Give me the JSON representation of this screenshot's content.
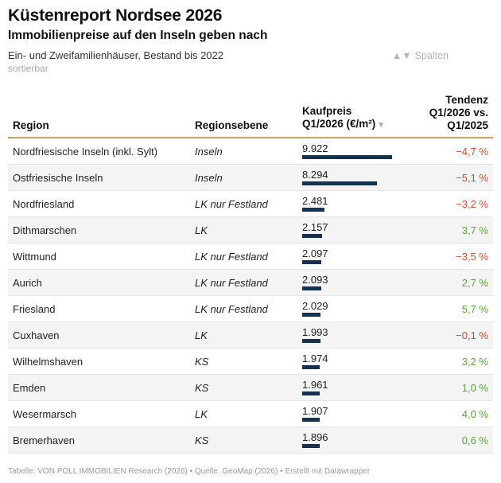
{
  "header": {
    "title": "Küstenreport Nordsee 2026",
    "subtitle": "Immobilienpreise auf den Inseln geben nach",
    "description": "Ein- und Zweifamilienhäuser, Bestand bis 2022",
    "sortable_note": "sortierbar",
    "columns_button_arrows": "▲▼",
    "columns_button_label": "Spalten"
  },
  "table": {
    "col_region": "Region",
    "col_ebene": "Regionsebene",
    "col_preis_line1": "Kaufpreis",
    "col_preis_line2": "Q1/2026 (€/m²)",
    "col_preis_sort": "▼",
    "col_tendenz_line1": "Tendenz",
    "col_tendenz_line2": "Q1/2026 vs.",
    "col_tendenz_line3": "Q1/2025"
  },
  "colors": {
    "bar": "#14324f",
    "negative": "#c9513a",
    "positive": "#5aa63f",
    "header_rule": "#c9a35a"
  },
  "chart_data": {
    "type": "table",
    "columns": [
      "Region",
      "Regionsebene",
      "Kaufpreis Q1/2026 (€/m²)",
      "Tendenz Q1/2026 vs. Q1/2025"
    ],
    "bar_max": 9922,
    "rows": [
      {
        "region": "Nordfriesische Inseln (inkl. Sylt)",
        "ebene": "Inseln",
        "preis_label": "9.922",
        "preis": 9922,
        "tendenz_label": "−4,7 %",
        "tendenz": -4.7
      },
      {
        "region": "Ostfriesische Inseln",
        "ebene": "Inseln",
        "preis_label": "8.294",
        "preis": 8294,
        "tendenz_label": "−5,1 %",
        "tendenz": -5.1
      },
      {
        "region": "Nordfriesland",
        "ebene": "LK nur Festland",
        "preis_label": "2.481",
        "preis": 2481,
        "tendenz_label": "−3,2 %",
        "tendenz": -3.2
      },
      {
        "region": "Dithmarschen",
        "ebene": "LK",
        "preis_label": "2.157",
        "preis": 2157,
        "tendenz_label": "3,7 %",
        "tendenz": 3.7
      },
      {
        "region": "Wittmund",
        "ebene": "LK nur Festland",
        "preis_label": "2.097",
        "preis": 2097,
        "tendenz_label": "−3,5 %",
        "tendenz": -3.5
      },
      {
        "region": "Aurich",
        "ebene": "LK nur Festland",
        "preis_label": "2.093",
        "preis": 2093,
        "tendenz_label": "2,7 %",
        "tendenz": 2.7
      },
      {
        "region": "Friesland",
        "ebene": "LK nur Festland",
        "preis_label": "2.029",
        "preis": 2029,
        "tendenz_label": "5,7 %",
        "tendenz": 5.7
      },
      {
        "region": "Cuxhaven",
        "ebene": "LK",
        "preis_label": "1.993",
        "preis": 1993,
        "tendenz_label": "−0,1 %",
        "tendenz": -0.1
      },
      {
        "region": "Wilhelmshaven",
        "ebene": "KS",
        "preis_label": "1.974",
        "preis": 1974,
        "tendenz_label": "3,2 %",
        "tendenz": 3.2
      },
      {
        "region": "Emden",
        "ebene": "KS",
        "preis_label": "1.961",
        "preis": 1961,
        "tendenz_label": "1,0 %",
        "tendenz": 1.0
      },
      {
        "region": "Wesermarsch",
        "ebene": "LK",
        "preis_label": "1.907",
        "preis": 1907,
        "tendenz_label": "4,0 %",
        "tendenz": 4.0
      },
      {
        "region": "Bremerhaven",
        "ebene": "KS",
        "preis_label": "1.896",
        "preis": 1896,
        "tendenz_label": "0,6 %",
        "tendenz": 0.6
      }
    ]
  },
  "footer": {
    "source": "Tabelle: VON POLL IMMOBILIEN Research (2026) • Quelle: GeoMap (2026) • Erstellt mit Datawrapper"
  }
}
